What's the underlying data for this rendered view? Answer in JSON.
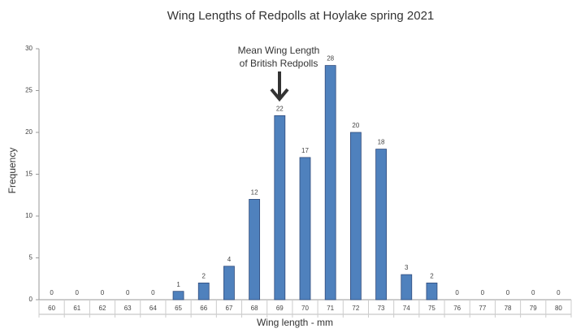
{
  "chart_data": {
    "type": "bar",
    "title": "Wing Lengths of Redpolls at Hoylake spring 2021",
    "x_label": "Wing length - mm",
    "y_label": "Frequency",
    "annotation": [
      "Mean Wing Length",
      "of British Redpolls"
    ],
    "categories": [
      "60",
      "61",
      "62",
      "63",
      "64",
      "65",
      "66",
      "67",
      "68",
      "69",
      "70",
      "71",
      "72",
      "73",
      "74",
      "75",
      "76",
      "77",
      "78",
      "79",
      "80"
    ],
    "values": [
      0,
      0,
      0,
      0,
      0,
      1,
      2,
      4,
      12,
      22,
      17,
      28,
      20,
      18,
      3,
      2,
      0,
      0,
      0,
      0,
      0
    ],
    "color": "#4f81bd",
    "ylim": [
      0,
      30
    ],
    "yticks": [
      0,
      5,
      10,
      15,
      20,
      25,
      30
    ],
    "grid": false
  }
}
